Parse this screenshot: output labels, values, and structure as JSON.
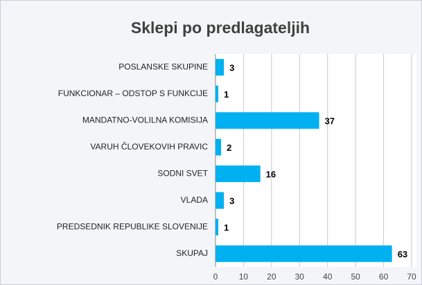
{
  "chart_data": {
    "type": "bar",
    "orientation": "horizontal",
    "title": "Sklepi po predlagateljih",
    "categories": [
      "POSLANSKE SKUPINE",
      "FUNKCIONAR – ODSTOP S FUNKCIJE",
      "MANDATNO-VOLILNA  KOMISIJA",
      "VARUH ČLOVEKOVIH  PRAVIC",
      "SODNI SVET",
      "VLADA",
      "PREDSEDNIK REPUBLIKE SLOVENIJE",
      "SKUPAJ"
    ],
    "values": [
      3,
      1,
      37,
      2,
      16,
      3,
      1,
      63
    ],
    "color": "#00b0f0",
    "xlim": [
      0,
      70
    ],
    "xticks": [
      0,
      10,
      20,
      30,
      40,
      50,
      60,
      70
    ],
    "grid": true
  }
}
